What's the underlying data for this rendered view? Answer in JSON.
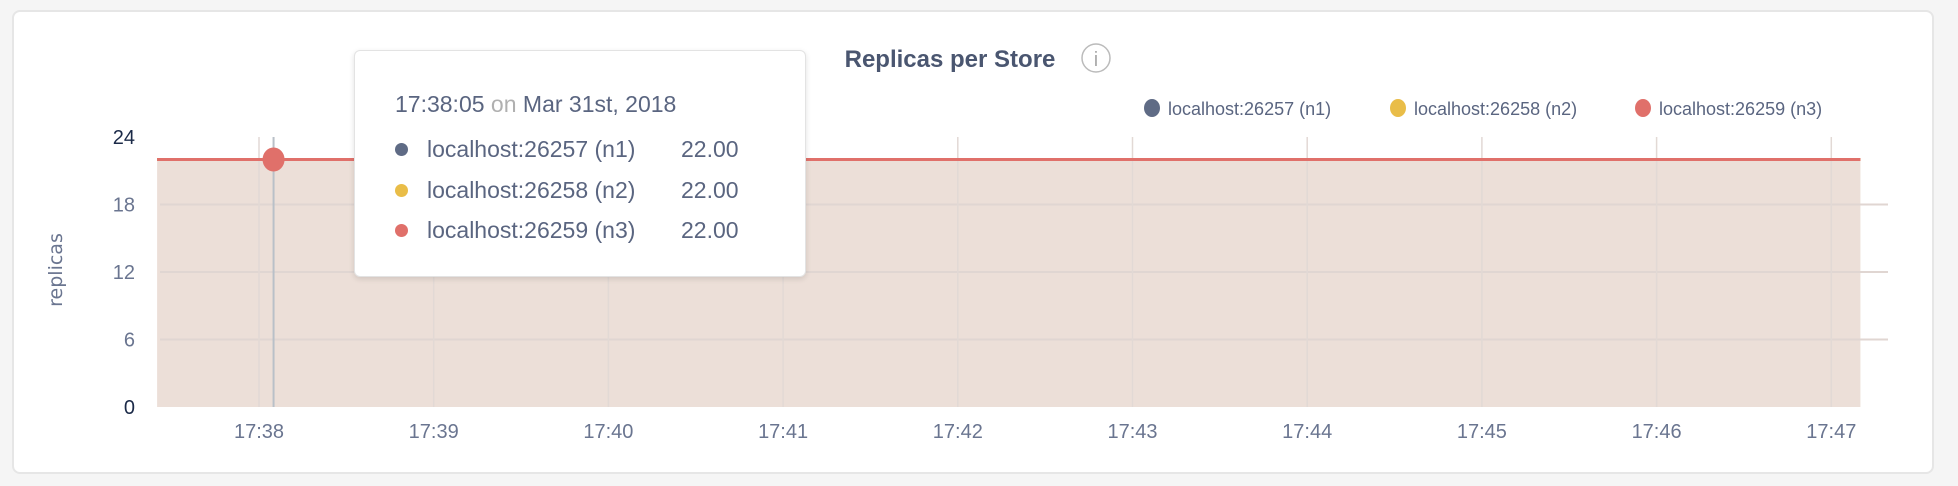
{
  "chart_data": {
    "type": "area",
    "title": "Replicas per Store",
    "ylabel": "replicas",
    "xlabel": "",
    "ylim": [
      0,
      24
    ],
    "y_ticks": [
      "0",
      "6",
      "12",
      "18",
      "24"
    ],
    "x_ticks": [
      "17:38",
      "17:39",
      "17:40",
      "17:41",
      "17:42",
      "17:43",
      "17:44",
      "17:45",
      "17:46",
      "17:47"
    ],
    "x": [
      "17:37:25",
      "17:38",
      "17:39",
      "17:40",
      "17:41",
      "17:42",
      "17:43",
      "17:44",
      "17:45",
      "17:46",
      "17:47",
      "17:47:10"
    ],
    "grid": true,
    "legend_position": "top-right",
    "series": [
      {
        "name": "localhost:26257 (n1)",
        "color": "#5f6b85",
        "values": [
          22,
          22,
          22,
          22,
          22,
          22,
          22,
          22,
          22,
          22,
          22,
          22
        ]
      },
      {
        "name": "localhost:26258 (n2)",
        "color": "#e9bd48",
        "values": [
          22,
          22,
          22,
          22,
          22,
          22,
          22,
          22,
          22,
          22,
          22,
          22
        ]
      },
      {
        "name": "localhost:26259 (n3)",
        "color": "#e0706a",
        "values": [
          22,
          22,
          22,
          22,
          22,
          22,
          22,
          22,
          22,
          22,
          22,
          22
        ]
      }
    ],
    "fill_color": "#ecdfd8"
  },
  "info_icon": "info-circle-icon",
  "tooltip": {
    "time": "17:38:05",
    "on": "on",
    "date": "Mar 31st, 2018",
    "hover_x": "17:38:05",
    "rows": [
      {
        "name": "localhost:26257 (n1)",
        "value": "22.00",
        "color": "#5f6b85"
      },
      {
        "name": "localhost:26258 (n2)",
        "value": "22.00",
        "color": "#e9bd48"
      },
      {
        "name": "localhost:26259 (n3)",
        "value": "22.00",
        "color": "#e0706a"
      }
    ]
  }
}
